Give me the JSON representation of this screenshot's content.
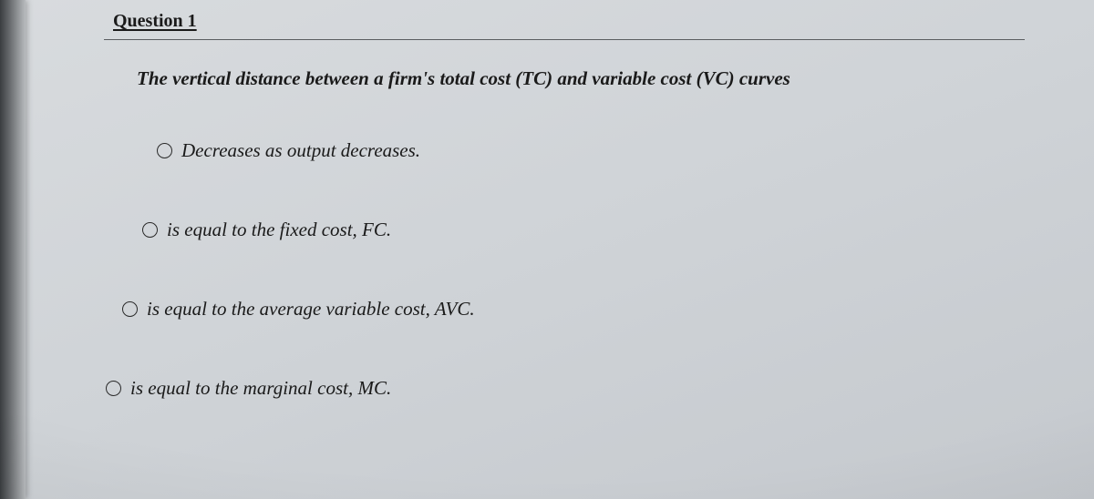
{
  "question": {
    "header": "Question 1",
    "prompt": "The vertical distance between a firm's total cost (TC) and variable cost (VC) curves",
    "options": [
      {
        "text": "Decreases as output decreases."
      },
      {
        "text": "is equal to the fixed cost, FC."
      },
      {
        "text": "is equal to the average variable cost, AVC."
      },
      {
        "text": "is equal to the marginal cost, MC."
      }
    ]
  },
  "styling": {
    "background_gradient": [
      "#d8dbde",
      "#cfd3d7",
      "#c5c9ce"
    ],
    "text_color": "#1a1a1a",
    "divider_color": "#5a5d60",
    "radio_border": "#2a2a2a",
    "font_family": "Georgia, Times New Roman, serif",
    "header_fontsize": 20,
    "prompt_fontsize": 21,
    "option_fontsize": 21,
    "option_font_style": "italic"
  }
}
